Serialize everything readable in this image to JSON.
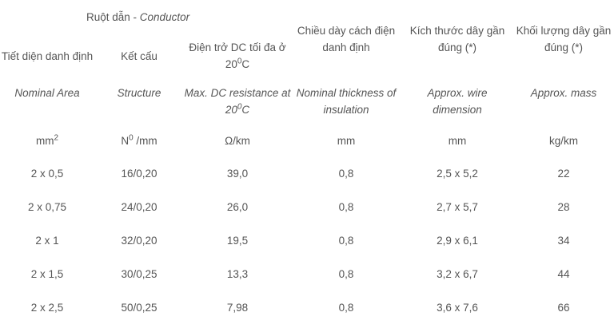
{
  "header": {
    "conductor_vi": "Ruột dẫn - ",
    "conductor_en": "Conductor",
    "insulation_vi": "Chiều dày cách điện danh định",
    "dimension_vi": "Kích thước dây gần đúng (*)",
    "mass_vi": "Khối lượng dây gần đúng (*)",
    "area_vi": "Tiết diện danh định",
    "structure_vi": "Kết cấu",
    "resistance_vi_pre": "Điện trở DC tối đa ở 20",
    "resistance_vi_sup": "0",
    "resistance_vi_post": "C"
  },
  "header_en": {
    "area": "Nominal Area",
    "structure": "Structure",
    "resistance_pre": "Max. DC resistance at 20",
    "resistance_sup": "0",
    "resistance_post": "C",
    "insulation": "Nominal thickness of insulation",
    "dimension": "Approx. wire dimension",
    "mass": "Approx. mass"
  },
  "units": {
    "area_base": "mm",
    "area_sup": "2",
    "structure_pre": "N",
    "structure_sup": "0",
    "structure_post": " /mm",
    "resistance": "Ω/km",
    "insulation": "mm",
    "dimension": "mm",
    "mass": "kg/km"
  },
  "rows": [
    {
      "area": "2 x 0,5",
      "structure": "16/0,20",
      "resistance": "39,0",
      "insulation": "0,8",
      "dimension": "2,5 x 5,2",
      "mass": "22"
    },
    {
      "area": "2 x 0,75",
      "structure": "24/0,20",
      "resistance": "26,0",
      "insulation": "0,8",
      "dimension": "2,7 x 5,7",
      "mass": "28"
    },
    {
      "area": "2 x 1",
      "structure": "32/0,20",
      "resistance": "19,5",
      "insulation": "0,8",
      "dimension": "2,9 x 6,1",
      "mass": "34"
    },
    {
      "area": "2 x 1,5",
      "structure": "30/0,25",
      "resistance": "13,3",
      "insulation": "0,8",
      "dimension": "3,2 x 6,7",
      "mass": "44"
    },
    {
      "area": "2 x 2,5",
      "structure": "50/0,25",
      "resistance": "7,98",
      "insulation": "0,8",
      "dimension": "3,6 x 7,6",
      "mass": "66"
    }
  ]
}
